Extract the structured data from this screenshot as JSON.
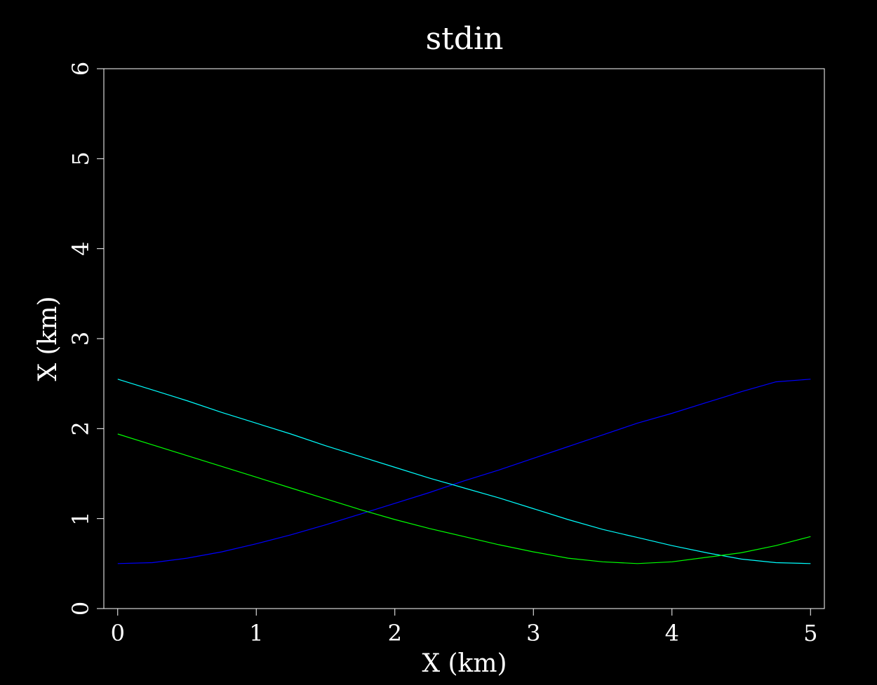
{
  "chart_data": {
    "type": "line",
    "title": "stdin",
    "xlabel": "X (km)",
    "ylabel": "X (km)",
    "xlim": [
      -0.1,
      5.1
    ],
    "ylim": [
      0,
      6
    ],
    "xticks": [
      "0",
      "1",
      "2",
      "3",
      "4",
      "5"
    ],
    "yticks": [
      "0",
      "1",
      "2",
      "3",
      "4",
      "5",
      "6"
    ],
    "grid": false,
    "legend": "none",
    "colors": {
      "background": "#000000",
      "frame": "#ffffff",
      "text": "#ffffff"
    },
    "series": [
      {
        "color": "#0000ff",
        "x": [
          0,
          0.25,
          0.5,
          0.75,
          1.0,
          1.25,
          1.5,
          1.75,
          2.0,
          2.25,
          2.5,
          2.75,
          3.0,
          3.25,
          3.5,
          3.75,
          4.0,
          4.25,
          4.5,
          4.75,
          5.0
        ],
        "y": [
          0.5,
          0.51,
          0.56,
          0.63,
          0.72,
          0.82,
          0.93,
          1.05,
          1.17,
          1.29,
          1.42,
          1.54,
          1.67,
          1.8,
          1.93,
          2.06,
          2.17,
          2.29,
          2.41,
          2.52,
          2.55
        ]
      },
      {
        "color": "#00ffff",
        "x": [
          0,
          0.25,
          0.5,
          0.75,
          1.0,
          1.25,
          1.5,
          1.75,
          2.0,
          2.25,
          2.5,
          2.75,
          3.0,
          3.25,
          3.5,
          3.75,
          4.0,
          4.25,
          4.5,
          4.75,
          5.0
        ],
        "y": [
          2.55,
          2.43,
          2.31,
          2.18,
          2.06,
          1.94,
          1.81,
          1.69,
          1.57,
          1.45,
          1.34,
          1.23,
          1.11,
          0.99,
          0.88,
          0.79,
          0.7,
          0.62,
          0.55,
          0.51,
          0.5
        ]
      },
      {
        "color": "#00ff00",
        "x": [
          0,
          0.25,
          0.5,
          0.75,
          1.0,
          1.25,
          1.5,
          1.75,
          2.0,
          2.25,
          2.5,
          2.75,
          3.0,
          3.25,
          3.5,
          3.75,
          4.0,
          4.25,
          4.5,
          4.75,
          5.0
        ],
        "y": [
          1.94,
          1.82,
          1.7,
          1.58,
          1.46,
          1.34,
          1.22,
          1.1,
          0.99,
          0.89,
          0.8,
          0.71,
          0.63,
          0.56,
          0.52,
          0.5,
          0.52,
          0.57,
          0.62,
          0.7,
          0.8
        ]
      }
    ]
  }
}
